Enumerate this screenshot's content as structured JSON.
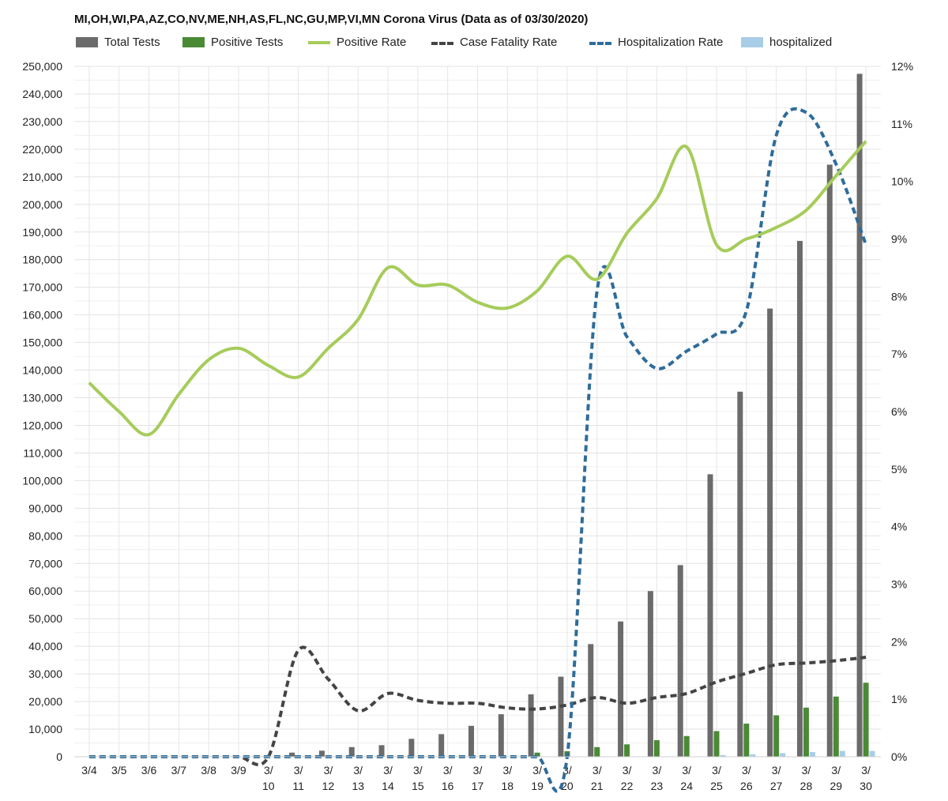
{
  "chart_data": {
    "type": "bar",
    "title": "MI,OH,WI,PA,AZ,CO,NV,ME,NH,AS,FL,NC,GU,MP,VI,MN Corona Virus (Data as of 03/30/2020)",
    "categories": [
      "3/4",
      "3/5",
      "3/6",
      "3/7",
      "3/8",
      "3/9",
      "3/10",
      "3/11",
      "3/12",
      "3/13",
      "3/14",
      "3/15",
      "3/16",
      "3/17",
      "3/18",
      "3/19",
      "3/20",
      "3/21",
      "3/22",
      "3/23",
      "3/24",
      "3/25",
      "3/26",
      "3/27",
      "3/28",
      "3/29",
      "3/30"
    ],
    "tick_labels": [
      [
        "3/4"
      ],
      [
        "3/5"
      ],
      [
        "3/6"
      ],
      [
        "3/7"
      ],
      [
        "3/8"
      ],
      [
        "3/9"
      ],
      [
        "3/",
        "10"
      ],
      [
        "3/",
        "11"
      ],
      [
        "3/",
        "12"
      ],
      [
        "3/",
        "13"
      ],
      [
        "3/",
        "14"
      ],
      [
        "3/",
        "15"
      ],
      [
        "3/",
        "16"
      ],
      [
        "3/",
        "17"
      ],
      [
        "3/",
        "18"
      ],
      [
        "3/",
        "19"
      ],
      [
        "3/",
        "20"
      ],
      [
        "3/",
        "21"
      ],
      [
        "3/",
        "22"
      ],
      [
        "3/",
        "23"
      ],
      [
        "3/",
        "24"
      ],
      [
        "3/",
        "25"
      ],
      [
        "3/",
        "26"
      ],
      [
        "3/",
        "27"
      ],
      [
        "3/",
        "28"
      ],
      [
        "3/",
        "29"
      ],
      [
        "3/",
        "30"
      ]
    ],
    "series": [
      {
        "name": "Total Tests",
        "kind": "bar",
        "axis": "left",
        "color": "#6b6b6b",
        "values": [
          0,
          0,
          0,
          0,
          0,
          0,
          0,
          1500,
          2200,
          3500,
          4200,
          6500,
          8200,
          11200,
          15400,
          22600,
          29000,
          40800,
          49000,
          60000,
          69400,
          102300,
          132200,
          162300,
          186800,
          214400,
          247300
        ]
      },
      {
        "name": "Positive Tests",
        "kind": "bar",
        "axis": "left",
        "color": "#4a8a35",
        "values": [
          0,
          0,
          0,
          0,
          0,
          0,
          0,
          0,
          0,
          0,
          0,
          0,
          0,
          0,
          0,
          1500,
          2000,
          3500,
          4500,
          6000,
          7500,
          9300,
          12000,
          15000,
          17800,
          21800,
          26800
        ]
      },
      {
        "name": "Positive Rate",
        "kind": "line",
        "axis": "right",
        "color": "#a6cc5a",
        "dashed": false,
        "values": [
          6.5,
          6.0,
          5.6,
          6.3,
          6.9,
          7.1,
          6.8,
          6.6,
          7.1,
          7.6,
          8.5,
          8.2,
          8.2,
          7.9,
          7.8,
          8.1,
          8.7,
          8.3,
          9.1,
          9.7,
          10.6,
          8.9,
          9.0,
          9.2,
          9.5,
          10.1,
          10.7
        ]
      },
      {
        "name": "Case Fatality Rate",
        "kind": "line",
        "axis": "right",
        "color": "#444444",
        "dashed": true,
        "values": [
          0,
          0,
          0,
          0,
          0,
          0,
          0,
          1.85,
          1.35,
          0.8,
          1.1,
          0.98,
          0.93,
          0.93,
          0.85,
          0.83,
          0.9,
          1.03,
          0.93,
          1.03,
          1.1,
          1.3,
          1.45,
          1.6,
          1.63,
          1.67,
          1.73
        ]
      },
      {
        "name": "Hospitalization Rate",
        "kind": "line",
        "axis": "right",
        "color": "#2e6c9a",
        "dashed": true,
        "values": [
          0,
          0,
          0,
          0,
          0,
          0,
          0,
          0,
          0,
          0,
          0,
          0,
          0,
          0,
          0,
          0,
          0,
          8.1,
          7.3,
          6.75,
          7.05,
          7.35,
          7.75,
          10.8,
          11.2,
          10.3,
          8.9
        ]
      },
      {
        "name": "hospitalized",
        "kind": "bar",
        "axis": "left",
        "color": "#a8cde6",
        "values": [
          0,
          0,
          0,
          0,
          0,
          0,
          0,
          0,
          0,
          0,
          0,
          0,
          0,
          0,
          0,
          0,
          0,
          0,
          0,
          0,
          0,
          600,
          900,
          1300,
          1700,
          2100,
          2100
        ]
      }
    ],
    "y_left": {
      "min": 0,
      "max": 250000,
      "step": 10000
    },
    "y_right": {
      "min": 0,
      "max": 12,
      "step": 1,
      "format": "percent"
    },
    "grid": true,
    "legend_position": "top-left"
  }
}
